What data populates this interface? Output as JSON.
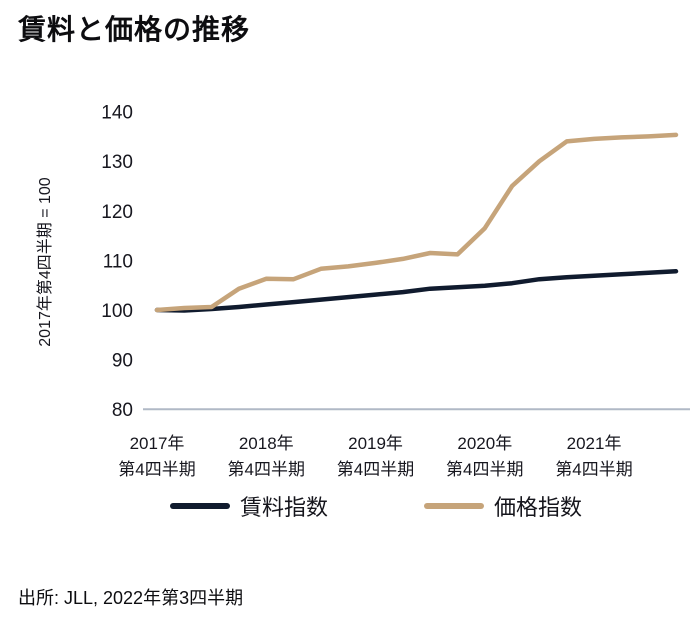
{
  "title": "賃料と価格の推移",
  "source": "出所: JLL, 2022年第3四半期",
  "legend": [
    {
      "label": "賃料指数",
      "color": "#101b2e"
    },
    {
      "label": "価格指数",
      "color": "#c6a47a"
    }
  ],
  "colors": {
    "rent_line": "#101b2e",
    "price_line": "#c6a47a",
    "axis_line": "#b0b9c6",
    "text": "#17171f"
  },
  "chart_data": {
    "type": "line",
    "title": "賃料と価格の推移",
    "x": [
      "2017Q4",
      "2018Q1",
      "2018Q2",
      "2018Q3",
      "2018Q4",
      "2019Q1",
      "2019Q2",
      "2019Q3",
      "2019Q4",
      "2020Q1",
      "2020Q2",
      "2020Q3",
      "2020Q4",
      "2021Q1",
      "2021Q2",
      "2021Q3",
      "2021Q4",
      "2022Q1",
      "2022Q2",
      "2022Q3"
    ],
    "series": [
      {
        "name": "賃料指数",
        "color": "#101b2e",
        "values": [
          100,
          99.9,
          100.2,
          100.6,
          101.1,
          101.6,
          102.1,
          102.6,
          103.1,
          103.6,
          104.3,
          104.6,
          104.9,
          105.4,
          106.2,
          106.6,
          106.9,
          107.2,
          107.5,
          107.8
        ]
      },
      {
        "name": "価格指数",
        "color": "#c6a47a",
        "values": [
          100,
          100.4,
          100.6,
          104.3,
          106.3,
          106.2,
          108.3,
          108.8,
          109.5,
          110.3,
          111.5,
          111.2,
          116.5,
          125.0,
          130.0,
          134.0,
          134.5,
          134.8,
          135.0,
          135.3
        ]
      }
    ],
    "ylabel": "2017年第4四半期 = 100",
    "xlabel": "",
    "ylim": [
      80,
      140
    ],
    "yticks": [
      80,
      90,
      100,
      110,
      120,
      130,
      140
    ],
    "xticks": [
      {
        "index": 0,
        "line1": "2017年",
        "line2": "第4四半期"
      },
      {
        "index": 4,
        "line1": "2018年",
        "line2": "第4四半期"
      },
      {
        "index": 8,
        "line1": "2019年",
        "line2": "第4四半期"
      },
      {
        "index": 12,
        "line1": "2020年",
        "line2": "第4四半期"
      },
      {
        "index": 16,
        "line1": "2021年",
        "line2": "第4四半期"
      }
    ],
    "grid": false,
    "legend_position": "bottom"
  }
}
